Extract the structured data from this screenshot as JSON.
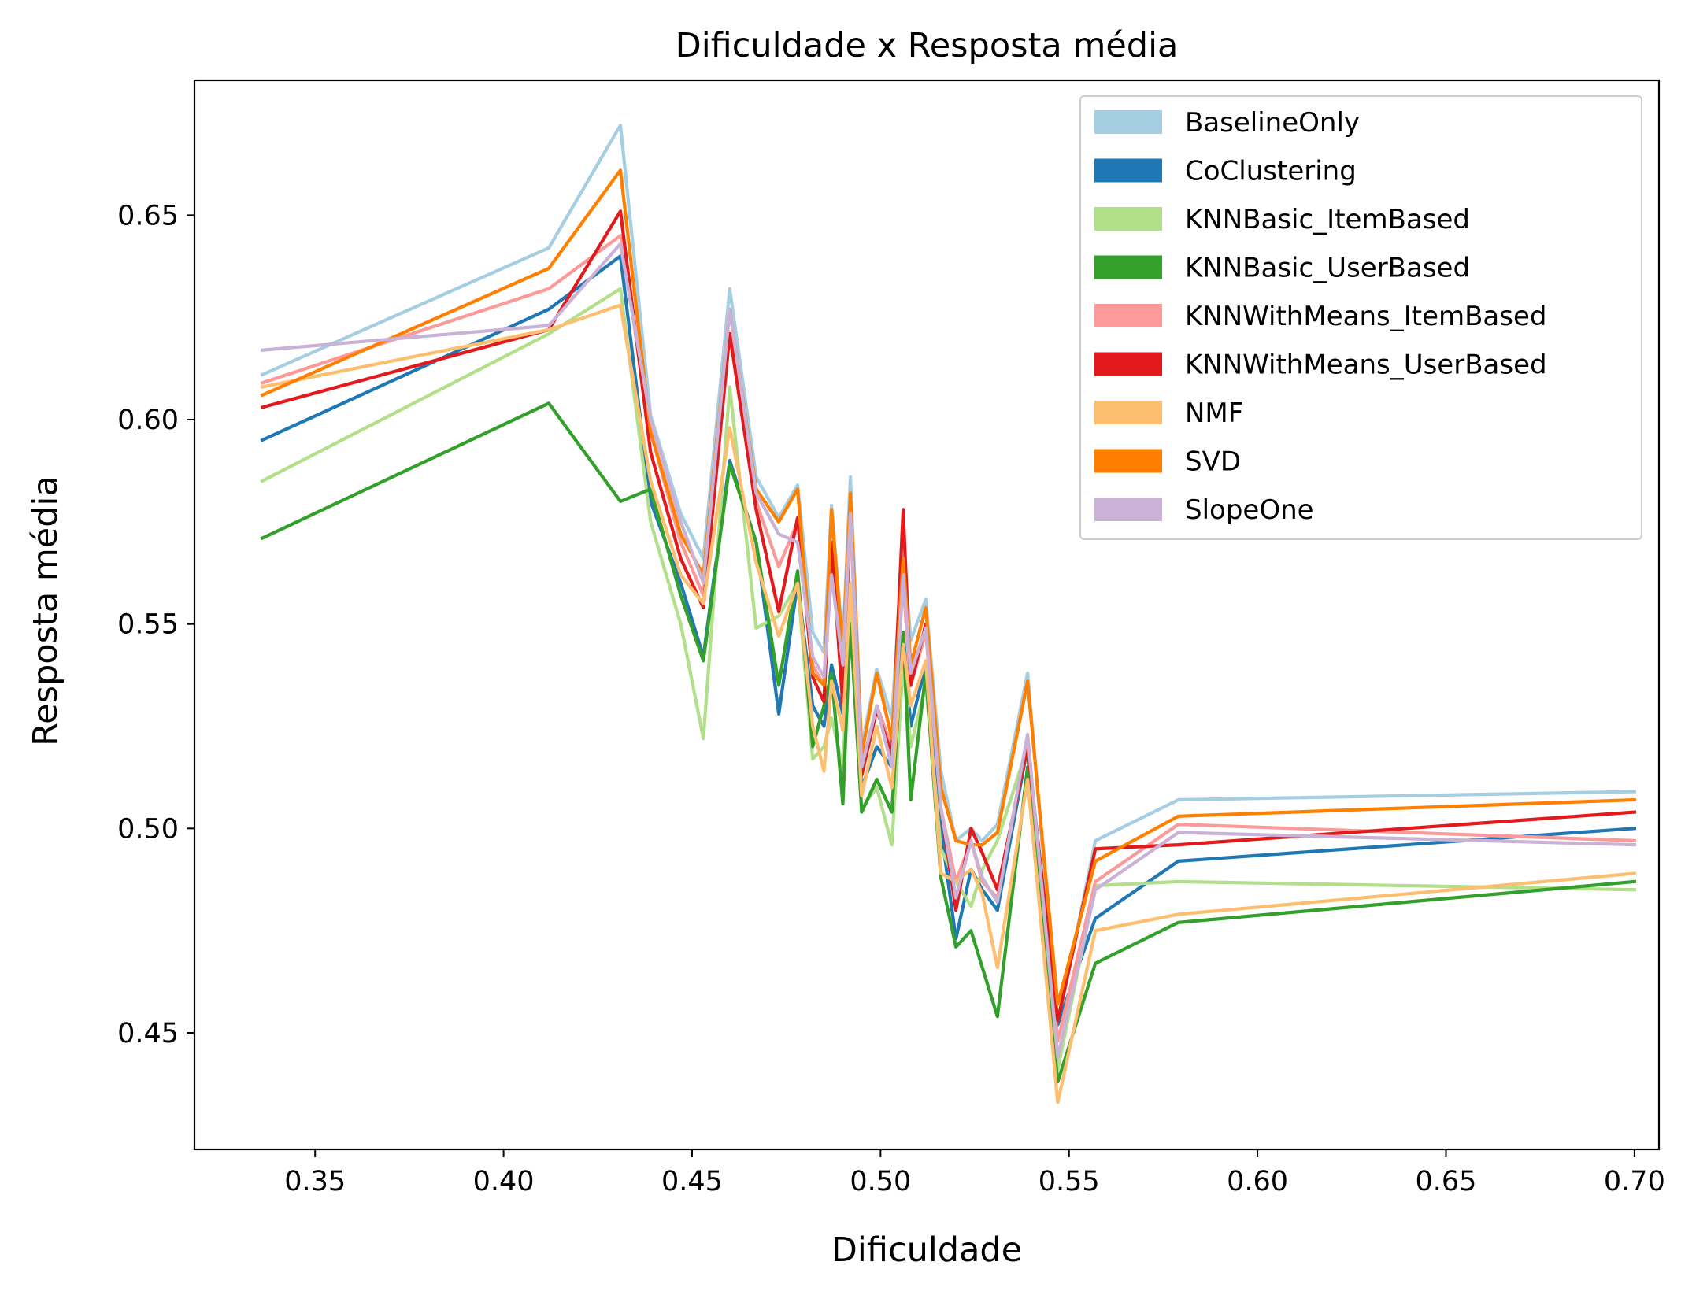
{
  "chart_data": {
    "type": "line",
    "title": "Dificuldade x Resposta média",
    "xlabel": "Dificuldade",
    "ylabel": "Resposta média",
    "xlim": [
      0.318,
      0.7065
    ],
    "ylim": [
      0.4215,
      0.683
    ],
    "xticks": [
      0.35,
      0.4,
      0.45,
      0.5,
      0.55,
      0.6,
      0.65,
      0.7
    ],
    "xtick_labels": [
      "0.35",
      "0.40",
      "0.45",
      "0.50",
      "0.55",
      "0.60",
      "0.65",
      "0.70"
    ],
    "yticks": [
      0.45,
      0.5,
      0.55,
      0.6,
      0.65
    ],
    "ytick_labels": [
      "0.45",
      "0.50",
      "0.55",
      "0.60",
      "0.65"
    ],
    "grid": false,
    "legend_position": "top-right",
    "x": [
      0.336,
      0.412,
      0.431,
      0.439,
      0.447,
      0.453,
      0.46,
      0.467,
      0.473,
      0.478,
      0.482,
      0.485,
      0.487,
      0.49,
      0.492,
      0.495,
      0.499,
      0.503,
      0.506,
      0.508,
      0.512,
      0.516,
      0.52,
      0.524,
      0.527,
      0.531,
      0.539,
      0.547,
      0.557,
      0.579,
      0.7
    ],
    "series": [
      {
        "name": "BaselineOnly",
        "color": "#a6cee3",
        "values": [
          0.611,
          0.642,
          0.672,
          0.601,
          0.577,
          0.566,
          0.632,
          0.586,
          0.576,
          0.584,
          0.548,
          0.543,
          0.579,
          0.545,
          0.586,
          0.52,
          0.539,
          0.527,
          0.57,
          0.546,
          0.556,
          0.514,
          0.497,
          0.5,
          0.497,
          0.501,
          0.538,
          0.452,
          0.497,
          0.507,
          0.509
        ]
      },
      {
        "name": "CoClustering",
        "color": "#1f78b4",
        "values": [
          0.595,
          0.627,
          0.64,
          0.58,
          0.56,
          0.542,
          0.59,
          0.57,
          0.528,
          0.56,
          0.53,
          0.525,
          0.54,
          0.528,
          0.56,
          0.51,
          0.52,
          0.515,
          0.548,
          0.525,
          0.54,
          0.5,
          0.473,
          0.49,
          0.485,
          0.48,
          0.52,
          0.452,
          0.478,
          0.492,
          0.5
        ]
      },
      {
        "name": "KNNBasic_ItemBased",
        "color": "#b2df8a",
        "values": [
          0.585,
          0.621,
          0.632,
          0.575,
          0.55,
          0.522,
          0.608,
          0.549,
          0.552,
          0.56,
          0.517,
          0.52,
          0.527,
          0.515,
          0.552,
          0.505,
          0.51,
          0.496,
          0.54,
          0.52,
          0.535,
          0.495,
          0.487,
          0.481,
          0.49,
          0.497,
          0.52,
          0.441,
          0.486,
          0.487,
          0.485
        ]
      },
      {
        "name": "KNNBasic_UserBased",
        "color": "#33a02c",
        "values": [
          0.571,
          0.604,
          0.58,
          0.583,
          0.557,
          0.541,
          0.589,
          0.57,
          0.535,
          0.563,
          0.52,
          0.53,
          0.538,
          0.506,
          0.55,
          0.504,
          0.512,
          0.504,
          0.548,
          0.507,
          0.538,
          0.488,
          0.471,
          0.475,
          0.466,
          0.454,
          0.515,
          0.438,
          0.467,
          0.477,
          0.487
        ]
      },
      {
        "name": "KNNWithMeans_ItemBased",
        "color": "#fb9a99",
        "values": [
          0.609,
          0.632,
          0.645,
          0.597,
          0.57,
          0.557,
          0.627,
          0.58,
          0.564,
          0.575,
          0.54,
          0.535,
          0.568,
          0.535,
          0.575,
          0.515,
          0.53,
          0.52,
          0.56,
          0.535,
          0.548,
          0.505,
          0.487,
          0.497,
          0.487,
          0.483,
          0.521,
          0.448,
          0.487,
          0.501,
          0.497
        ]
      },
      {
        "name": "KNNWithMeans_UserBased",
        "color": "#e31a1c",
        "values": [
          0.603,
          0.622,
          0.651,
          0.592,
          0.566,
          0.554,
          0.621,
          0.578,
          0.553,
          0.576,
          0.537,
          0.531,
          0.57,
          0.53,
          0.579,
          0.513,
          0.529,
          0.518,
          0.578,
          0.535,
          0.55,
          0.505,
          0.48,
          0.5,
          0.494,
          0.485,
          0.52,
          0.453,
          0.495,
          0.496,
          0.504
        ]
      },
      {
        "name": "NMF",
        "color": "#fdbf6f",
        "values": [
          0.608,
          0.622,
          0.628,
          0.585,
          0.562,
          0.555,
          0.598,
          0.565,
          0.547,
          0.56,
          0.525,
          0.514,
          0.536,
          0.524,
          0.56,
          0.508,
          0.525,
          0.51,
          0.545,
          0.53,
          0.541,
          0.489,
          0.487,
          0.49,
          0.484,
          0.466,
          0.512,
          0.433,
          0.475,
          0.479,
          0.489
        ]
      },
      {
        "name": "SVD",
        "color": "#ff7f00",
        "values": [
          0.606,
          0.637,
          0.661,
          0.597,
          0.572,
          0.562,
          0.627,
          0.583,
          0.575,
          0.583,
          0.538,
          0.535,
          0.578,
          0.543,
          0.582,
          0.518,
          0.538,
          0.522,
          0.566,
          0.54,
          0.554,
          0.51,
          0.497,
          0.496,
          0.496,
          0.499,
          0.536,
          0.457,
          0.492,
          0.503,
          0.507
        ]
      },
      {
        "name": "SlopeOne",
        "color": "#cab2d6",
        "values": [
          0.617,
          0.623,
          0.643,
          0.6,
          0.575,
          0.56,
          0.627,
          0.582,
          0.572,
          0.57,
          0.542,
          0.537,
          0.562,
          0.54,
          0.577,
          0.515,
          0.53,
          0.515,
          0.562,
          0.538,
          0.549,
          0.505,
          0.483,
          0.497,
          0.488,
          0.482,
          0.523,
          0.444,
          0.485,
          0.499,
          0.496
        ]
      }
    ]
  }
}
